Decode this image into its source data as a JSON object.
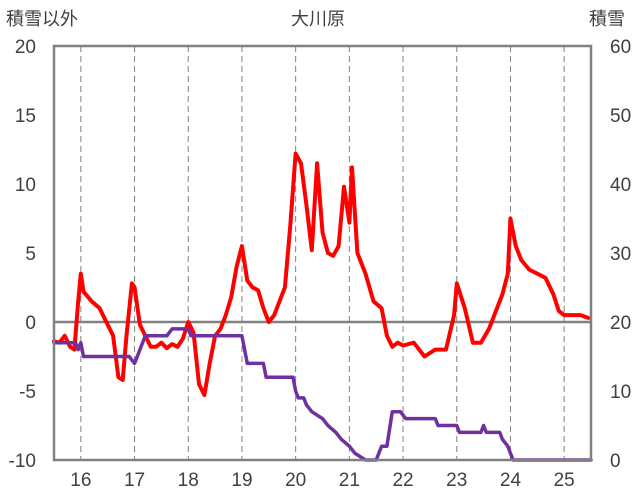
{
  "chart_data": {
    "type": "line",
    "title": "大川原",
    "ylabel_left": "積雪以外",
    "ylabel_right": "積雪",
    "ylim_left": [
      -10,
      20
    ],
    "ylim_right": [
      0,
      60
    ],
    "yticks_left": [
      "20",
      "15",
      "10",
      "5",
      "0",
      "-5",
      "-10"
    ],
    "yticks_right": [
      "60",
      "50",
      "40",
      "30",
      "20",
      "10",
      "0"
    ],
    "xlim": [
      15.5,
      25.5
    ],
    "x_ticks": [
      "16",
      "17",
      "18",
      "19",
      "20",
      "21",
      "22",
      "23",
      "24",
      "25"
    ],
    "grid": "vertical dashed at each day",
    "colors": {
      "temperature": "#ff0000",
      "snow_depth": "#7030a0",
      "grid": "#808080",
      "zero_line": "#808080"
    },
    "series": [
      {
        "axis": "left",
        "points": [
          [
            15.5,
            -1.4
          ],
          [
            15.6,
            -1.5
          ],
          [
            15.7,
            -1.0
          ],
          [
            15.8,
            -1.8
          ],
          [
            15.88,
            -2.0
          ],
          [
            15.95,
            1.5
          ],
          [
            16.0,
            3.5
          ],
          [
            16.05,
            2.2
          ],
          [
            16.2,
            1.5
          ],
          [
            16.35,
            1.0
          ],
          [
            16.5,
            -0.2
          ],
          [
            16.6,
            -1.0
          ],
          [
            16.7,
            -4.0
          ],
          [
            16.78,
            -4.2
          ],
          [
            16.85,
            -1.0
          ],
          [
            16.95,
            2.8
          ],
          [
            17.0,
            2.5
          ],
          [
            17.1,
            -0.2
          ],
          [
            17.2,
            -1.0
          ],
          [
            17.3,
            -1.8
          ],
          [
            17.4,
            -1.8
          ],
          [
            17.5,
            -1.5
          ],
          [
            17.6,
            -1.9
          ],
          [
            17.7,
            -1.6
          ],
          [
            17.8,
            -1.8
          ],
          [
            17.9,
            -1.2
          ],
          [
            18.0,
            0.0
          ],
          [
            18.1,
            -0.8
          ],
          [
            18.2,
            -4.5
          ],
          [
            18.3,
            -5.3
          ],
          [
            18.4,
            -3.0
          ],
          [
            18.5,
            -1.0
          ],
          [
            18.6,
            -0.5
          ],
          [
            18.7,
            0.5
          ],
          [
            18.8,
            1.8
          ],
          [
            18.9,
            4.0
          ],
          [
            19.0,
            5.5
          ],
          [
            19.1,
            3.0
          ],
          [
            19.2,
            2.5
          ],
          [
            19.3,
            2.3
          ],
          [
            19.4,
            1.0
          ],
          [
            19.5,
            0.0
          ],
          [
            19.6,
            0.5
          ],
          [
            19.7,
            1.5
          ],
          [
            19.8,
            2.5
          ],
          [
            19.9,
            7.0
          ],
          [
            20.0,
            12.2
          ],
          [
            20.1,
            11.5
          ],
          [
            20.2,
            8.5
          ],
          [
            20.3,
            5.2
          ],
          [
            20.4,
            11.5
          ],
          [
            20.5,
            6.5
          ],
          [
            20.6,
            5.0
          ],
          [
            20.7,
            4.8
          ],
          [
            20.8,
            5.5
          ],
          [
            20.9,
            9.8
          ],
          [
            21.0,
            7.2
          ],
          [
            21.05,
            11.2
          ],
          [
            21.15,
            5.0
          ],
          [
            21.3,
            3.5
          ],
          [
            21.45,
            1.5
          ],
          [
            21.6,
            1.0
          ],
          [
            21.7,
            -1.0
          ],
          [
            21.8,
            -1.8
          ],
          [
            21.9,
            -1.5
          ],
          [
            22.0,
            -1.7
          ],
          [
            22.2,
            -1.5
          ],
          [
            22.4,
            -2.5
          ],
          [
            22.6,
            -2.0
          ],
          [
            22.8,
            -2.0
          ],
          [
            22.95,
            0.5
          ],
          [
            23.0,
            2.8
          ],
          [
            23.15,
            1.0
          ],
          [
            23.3,
            -1.5
          ],
          [
            23.45,
            -1.5
          ],
          [
            23.6,
            -0.5
          ],
          [
            23.75,
            1.0
          ],
          [
            23.85,
            2.0
          ],
          [
            23.95,
            3.5
          ],
          [
            24.0,
            7.5
          ],
          [
            24.1,
            5.5
          ],
          [
            24.2,
            4.5
          ],
          [
            24.35,
            3.8
          ],
          [
            24.5,
            3.5
          ],
          [
            24.65,
            3.2
          ],
          [
            24.8,
            2.0
          ],
          [
            24.9,
            0.8
          ],
          [
            25.0,
            0.5
          ],
          [
            25.15,
            0.5
          ],
          [
            25.3,
            0.5
          ],
          [
            25.45,
            0.3
          ]
        ]
      },
      {
        "axis": "right",
        "points": [
          [
            15.5,
            17
          ],
          [
            15.9,
            17
          ],
          [
            15.95,
            16
          ],
          [
            16.0,
            17
          ],
          [
            16.05,
            15
          ],
          [
            16.9,
            15
          ],
          [
            17.0,
            14
          ],
          [
            17.2,
            18
          ],
          [
            17.6,
            18
          ],
          [
            17.7,
            19
          ],
          [
            18.0,
            19
          ],
          [
            18.05,
            18
          ],
          [
            19.0,
            18
          ],
          [
            19.05,
            16
          ],
          [
            19.1,
            14
          ],
          [
            19.4,
            14
          ],
          [
            19.45,
            12
          ],
          [
            19.95,
            12
          ],
          [
            20.0,
            10
          ],
          [
            20.05,
            9
          ],
          [
            20.15,
            9
          ],
          [
            20.2,
            8
          ],
          [
            20.3,
            7
          ],
          [
            20.5,
            6
          ],
          [
            20.6,
            5
          ],
          [
            20.75,
            4
          ],
          [
            20.85,
            3
          ],
          [
            21.0,
            2
          ],
          [
            21.1,
            1
          ],
          [
            21.3,
            0
          ],
          [
            21.5,
            0
          ],
          [
            21.6,
            2
          ],
          [
            21.7,
            2
          ],
          [
            21.8,
            7
          ],
          [
            21.95,
            7
          ],
          [
            22.05,
            6
          ],
          [
            22.6,
            6
          ],
          [
            22.65,
            5
          ],
          [
            23.0,
            5
          ],
          [
            23.05,
            4
          ],
          [
            23.45,
            4
          ],
          [
            23.5,
            5
          ],
          [
            23.55,
            4
          ],
          [
            23.8,
            4
          ],
          [
            23.85,
            3
          ],
          [
            23.95,
            2
          ],
          [
            24.0,
            1
          ],
          [
            24.05,
            0
          ],
          [
            25.5,
            0
          ]
        ]
      }
    ]
  }
}
